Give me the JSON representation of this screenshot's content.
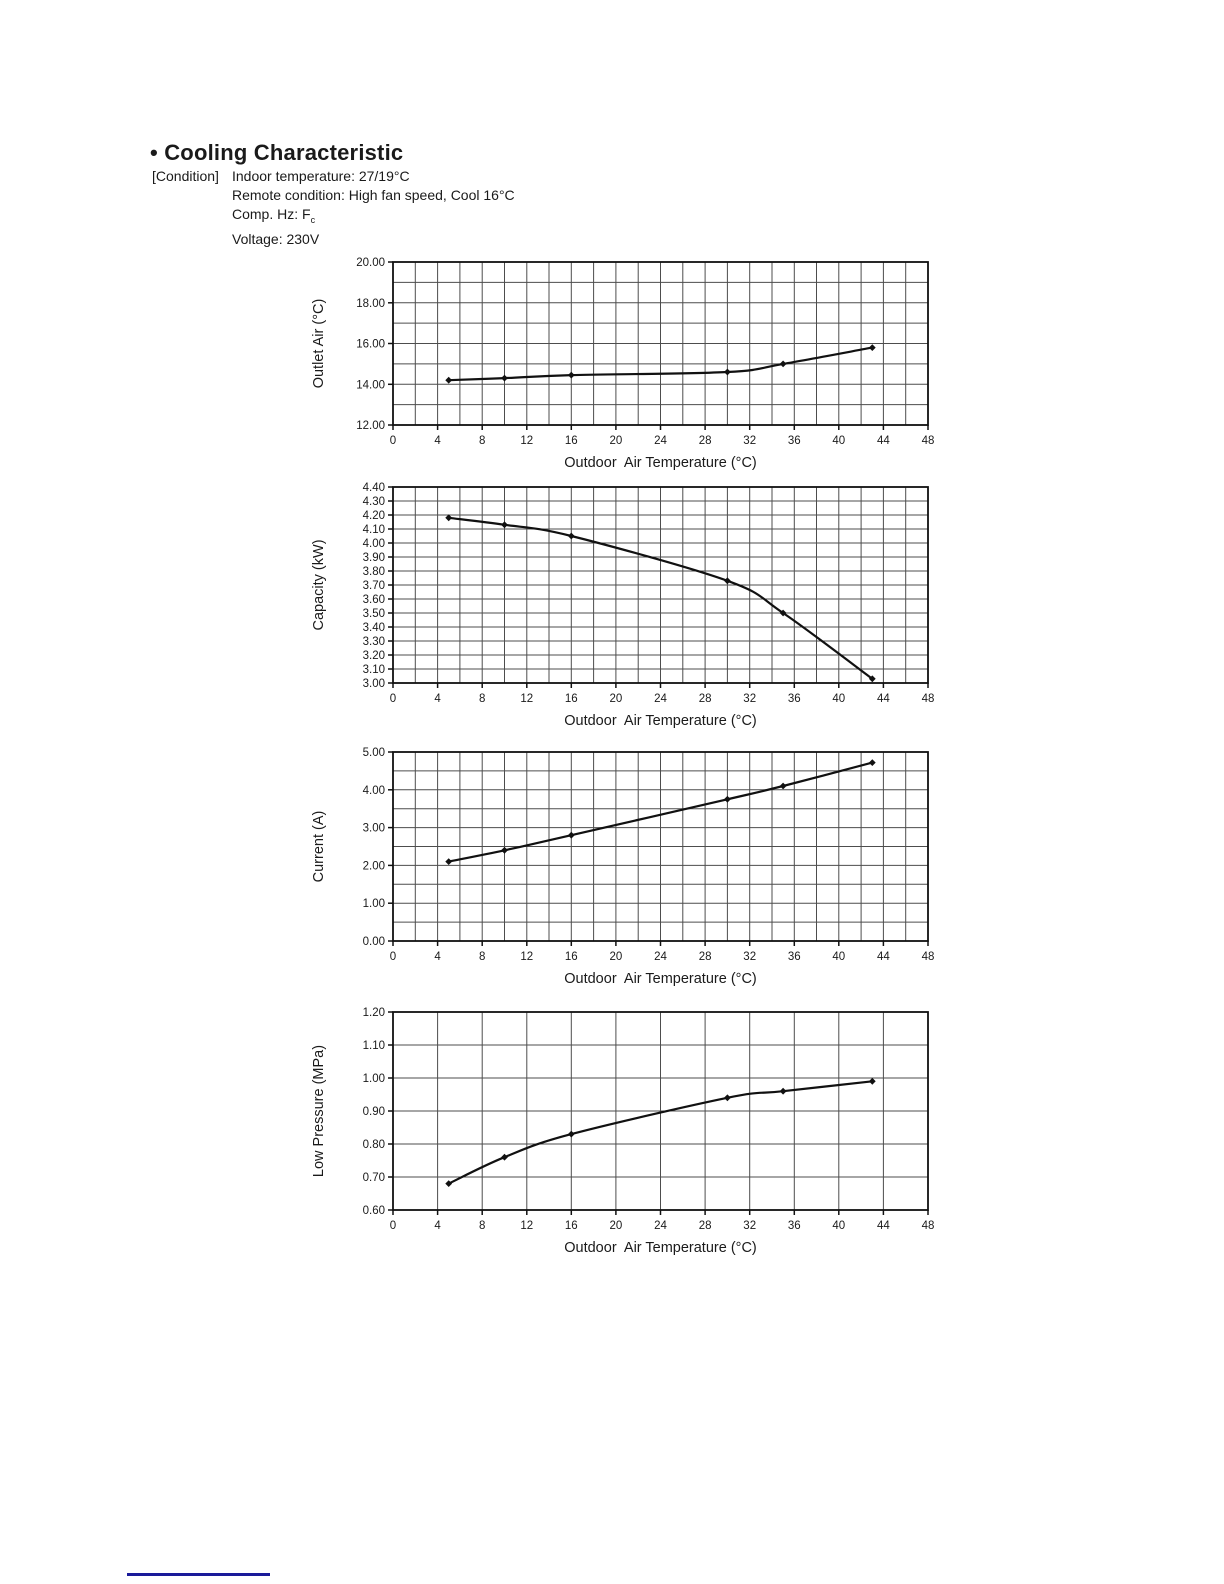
{
  "header": {
    "bullet": "•",
    "title": "Cooling Characteristic"
  },
  "conditions": {
    "label": "[Condition]",
    "line1": "Indoor temperature: 27/19°C",
    "line2": "Remote condition: High fan speed, Cool 16°C",
    "line3_pre": "Comp. Hz: F",
    "line3_sub": "c",
    "line4": "Voltage: 230V"
  },
  "colors": {
    "ink": "#111111",
    "grid": "#4d4d4d",
    "text": "#1a1a1a",
    "footer_rule": "#1a1a99"
  },
  "chart_data": [
    {
      "type": "line",
      "title": "",
      "ylabel": "Outlet Air (°C)",
      "xlabel": "Outdoor  Air Temperature (°C)",
      "x": [
        5,
        10,
        16,
        30,
        35,
        43
      ],
      "y": [
        14.2,
        14.3,
        14.45,
        14.6,
        15.0,
        15.8
      ],
      "xlim": [
        0,
        48
      ],
      "ylim": [
        12.0,
        20.0
      ],
      "x_label_step": 4,
      "x_grid_step": 2,
      "y_label_step": 2.0,
      "y_grid_step": 1.0,
      "y_decimals": 2,
      "grid": true,
      "legend": false,
      "marker": "diamond"
    },
    {
      "type": "line",
      "title": "",
      "ylabel": "Capacity (kW)",
      "xlabel": "Outdoor  Air Temperature (°C)",
      "x": [
        5,
        10,
        16,
        30,
        35,
        43
      ],
      "y": [
        4.18,
        4.13,
        4.05,
        3.73,
        3.5,
        3.03
      ],
      "xlim": [
        0,
        48
      ],
      "ylim": [
        3.0,
        4.4
      ],
      "x_label_step": 4,
      "x_grid_step": 2,
      "y_label_step": 0.1,
      "y_grid_step": 0.1,
      "y_decimals": 2,
      "grid": true,
      "legend": false,
      "marker": "diamond"
    },
    {
      "type": "line",
      "title": "",
      "ylabel": "Current (A)",
      "xlabel": "Outdoor  Air Temperature (°C)",
      "x": [
        5,
        10,
        16,
        30,
        35,
        43
      ],
      "y": [
        2.1,
        2.4,
        2.8,
        3.75,
        4.1,
        4.72
      ],
      "xlim": [
        0,
        48
      ],
      "ylim": [
        0.0,
        5.0
      ],
      "x_label_step": 4,
      "x_grid_step": 2,
      "y_label_step": 1.0,
      "y_grid_step": 0.5,
      "y_decimals": 2,
      "grid": true,
      "legend": false,
      "marker": "diamond"
    },
    {
      "type": "line",
      "title": "",
      "ylabel": "Low Pressure (MPa)",
      "xlabel": "Outdoor  Air Temperature (°C)",
      "x": [
        5,
        10,
        16,
        30,
        35,
        43
      ],
      "y": [
        0.68,
        0.76,
        0.83,
        0.94,
        0.96,
        0.99
      ],
      "xlim": [
        0,
        48
      ],
      "ylim": [
        0.6,
        1.2
      ],
      "x_label_step": 4,
      "x_grid_step": 4,
      "y_label_step": 0.1,
      "y_grid_step": 0.1,
      "y_decimals": 2,
      "grid": true,
      "legend": false,
      "marker": "diamond"
    }
  ]
}
